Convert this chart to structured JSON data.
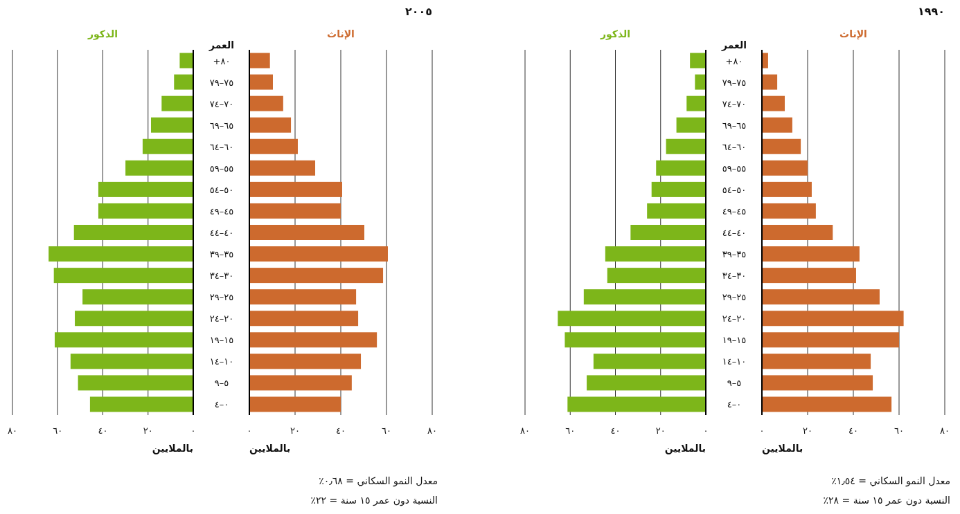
{
  "chart_data": [
    {
      "type": "bar",
      "orientation": "horizontal",
      "title": "١٩٩٠",
      "ylabel": "العمر",
      "xlabel": "بالملايين",
      "x2label": "بالملايين",
      "categories": [
        "٨٠+",
        "٧٥–٧٩",
        "٧٠–٧٤",
        "٦٥–٦٩",
        "٦٠–٦٤",
        "٥٥–٥٩",
        "٥٠–٥٤",
        "٤٥–٤٩",
        "٤٠–٤٤",
        "٣٥–٣٩",
        "٣٠–٣٤",
        "٢٥–٢٩",
        "٢٠–٢٤",
        "١٥–١٩",
        "١٠–١٤",
        "٥–٩",
        "٠–٤"
      ],
      "series": [
        {
          "name": "الإناث",
          "color": "#cd6a2e",
          "values": [
            2.7,
            6.7,
            10,
            13.3,
            17,
            20,
            21.8,
            23.6,
            31,
            42.7,
            41.2,
            51.5,
            62,
            60,
            47.6,
            48.5,
            56.7
          ]
        },
        {
          "name": "الذكور",
          "color": "#7db61a",
          "axis": "x2",
          "values": [
            7,
            4.8,
            8.5,
            13,
            17.6,
            22,
            24,
            26,
            33.3,
            44.5,
            43.6,
            54,
            65.5,
            62.4,
            49.7,
            52.7,
            61.2
          ]
        }
      ],
      "xlim": [
        0,
        80
      ],
      "xticks": [
        {
          "value": 0,
          "label": "٠"
        },
        {
          "value": 20,
          "label": "٢٠"
        },
        {
          "value": 40,
          "label": "٤٠"
        },
        {
          "value": 60,
          "label": "٦٠"
        },
        {
          "value": 80,
          "label": "٨٠"
        }
      ],
      "x2lim": [
        80,
        0
      ],
      "x2ticks": [
        {
          "value": 80,
          "label": "٨٠"
        },
        {
          "value": 60,
          "label": "٦٠"
        },
        {
          "value": 40,
          "label": "٤٠"
        },
        {
          "value": 20,
          "label": "٢٠"
        },
        {
          "value": 0,
          "label": "٠"
        }
      ],
      "grid": "x",
      "annotations": [
        "معدل النمو السكاني = ١٫٥٤٪",
        "النسبة دون عمر ١٥ سنة = ٢٨٪"
      ]
    },
    {
      "type": "bar",
      "orientation": "horizontal",
      "title": "٢٠٠٥",
      "ylabel": "العمر",
      "xlabel": "بالملايين",
      "x2label": "بالملايين",
      "categories": [
        "٨٠+",
        "٧٥–٧٩",
        "٧٠–٧٤",
        "٦٥–٦٩",
        "٦٠–٦٤",
        "٥٥–٥٩",
        "٥٠–٥٤",
        "٤٥–٤٩",
        "٤٠–٤٤",
        "٣٥–٣٩",
        "٣٠–٣٤",
        "٢٥–٢٩",
        "٢٠–٢٤",
        "١٥–١٩",
        "١٠–١٤",
        "٥–٩",
        "٠–٤"
      ],
      "series": [
        {
          "name": "الإناث",
          "color": "#cd6a2e",
          "values": [
            9,
            10.3,
            14.8,
            18.2,
            21.2,
            28.8,
            40.6,
            40,
            50.3,
            60.6,
            58.5,
            46.7,
            47.6,
            55.8,
            48.8,
            44.8,
            40
          ]
        },
        {
          "name": "الذكور",
          "color": "#7db61a",
          "axis": "x2",
          "values": [
            6,
            8.5,
            14,
            18.7,
            22.4,
            30,
            42,
            42,
            52.8,
            64,
            61.7,
            49,
            52.4,
            61.3,
            54.3,
            51,
            45.7
          ]
        }
      ],
      "xlim": [
        0,
        80
      ],
      "xticks": [
        {
          "value": 0,
          "label": "٠"
        },
        {
          "value": 20,
          "label": "٢٠"
        },
        {
          "value": 40,
          "label": "٤٠"
        },
        {
          "value": 60,
          "label": "٦٠"
        },
        {
          "value": 80,
          "label": "٨٠"
        }
      ],
      "x2lim": [
        80,
        0
      ],
      "x2ticks": [
        {
          "value": 80,
          "label": "٨٠"
        },
        {
          "value": 60,
          "label": "٦٠"
        },
        {
          "value": 40,
          "label": "٤٠"
        },
        {
          "value": 20,
          "label": "٢٠"
        },
        {
          "value": 0,
          "label": "٠"
        }
      ],
      "grid": "x",
      "annotations": [
        "معدل النمو السكاني = ٠٫٦٨٪",
        "النسبة دون عمر ١٥ سنة = ٢٢٪"
      ]
    }
  ]
}
